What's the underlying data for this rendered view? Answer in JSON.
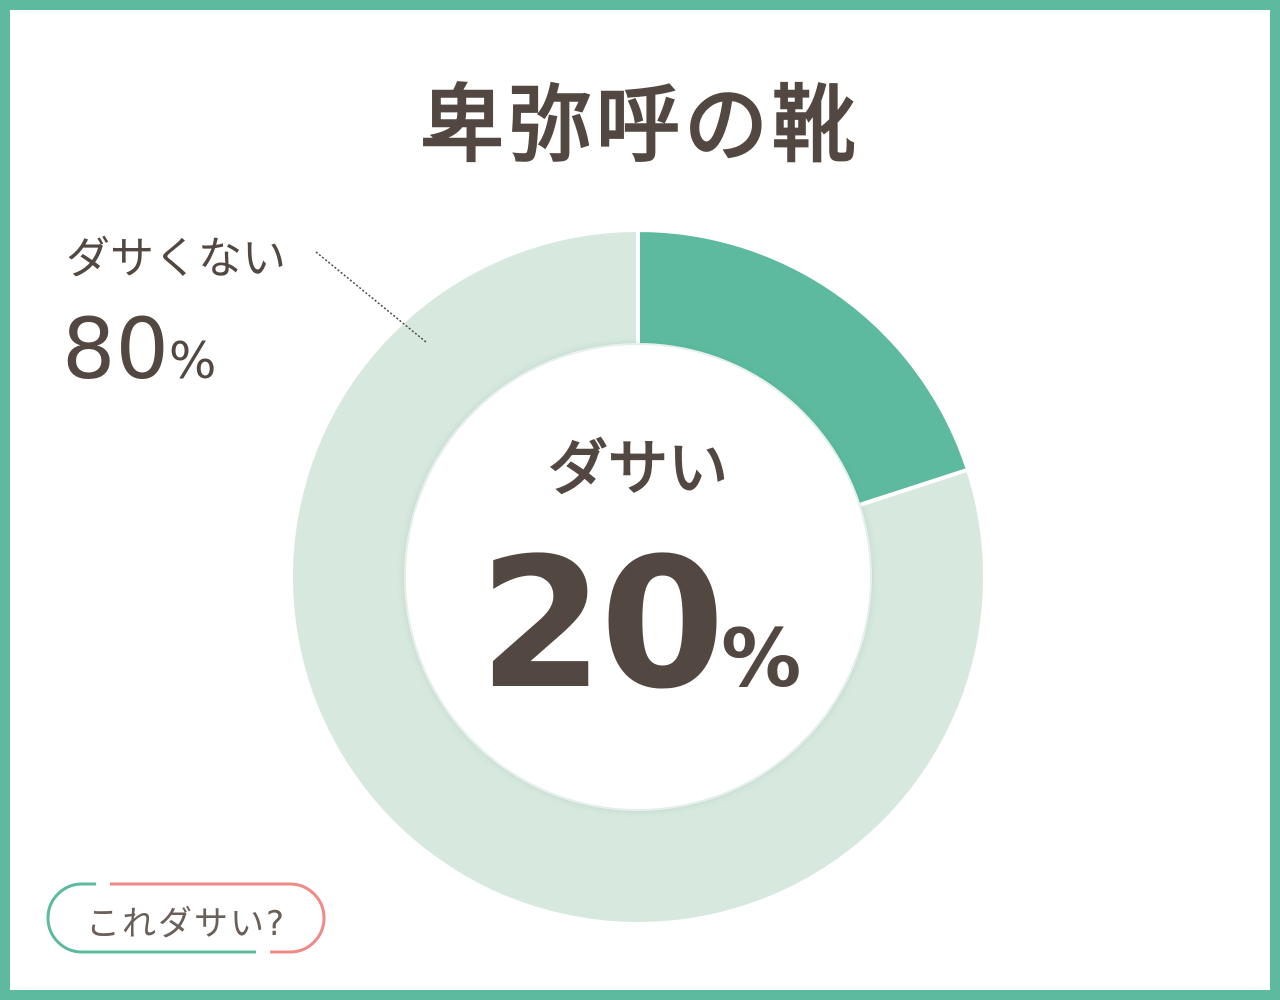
{
  "title": "卑弥呼の靴",
  "chart_data": {
    "type": "pie",
    "donut": true,
    "categories": [
      "ダサい",
      "ダサくない"
    ],
    "values": [
      20,
      80
    ],
    "unit": "%",
    "colors": [
      "#5dba9e",
      "#d7e8de"
    ],
    "labels": [
      {
        "name": "ダサい",
        "value": "20",
        "unit": "%"
      },
      {
        "name": "ダサくない",
        "value": "80",
        "unit": "%"
      }
    ]
  },
  "logo": {
    "text": "これダサい?",
    "colors": [
      "#5dba9e",
      "#ef8a86"
    ]
  }
}
